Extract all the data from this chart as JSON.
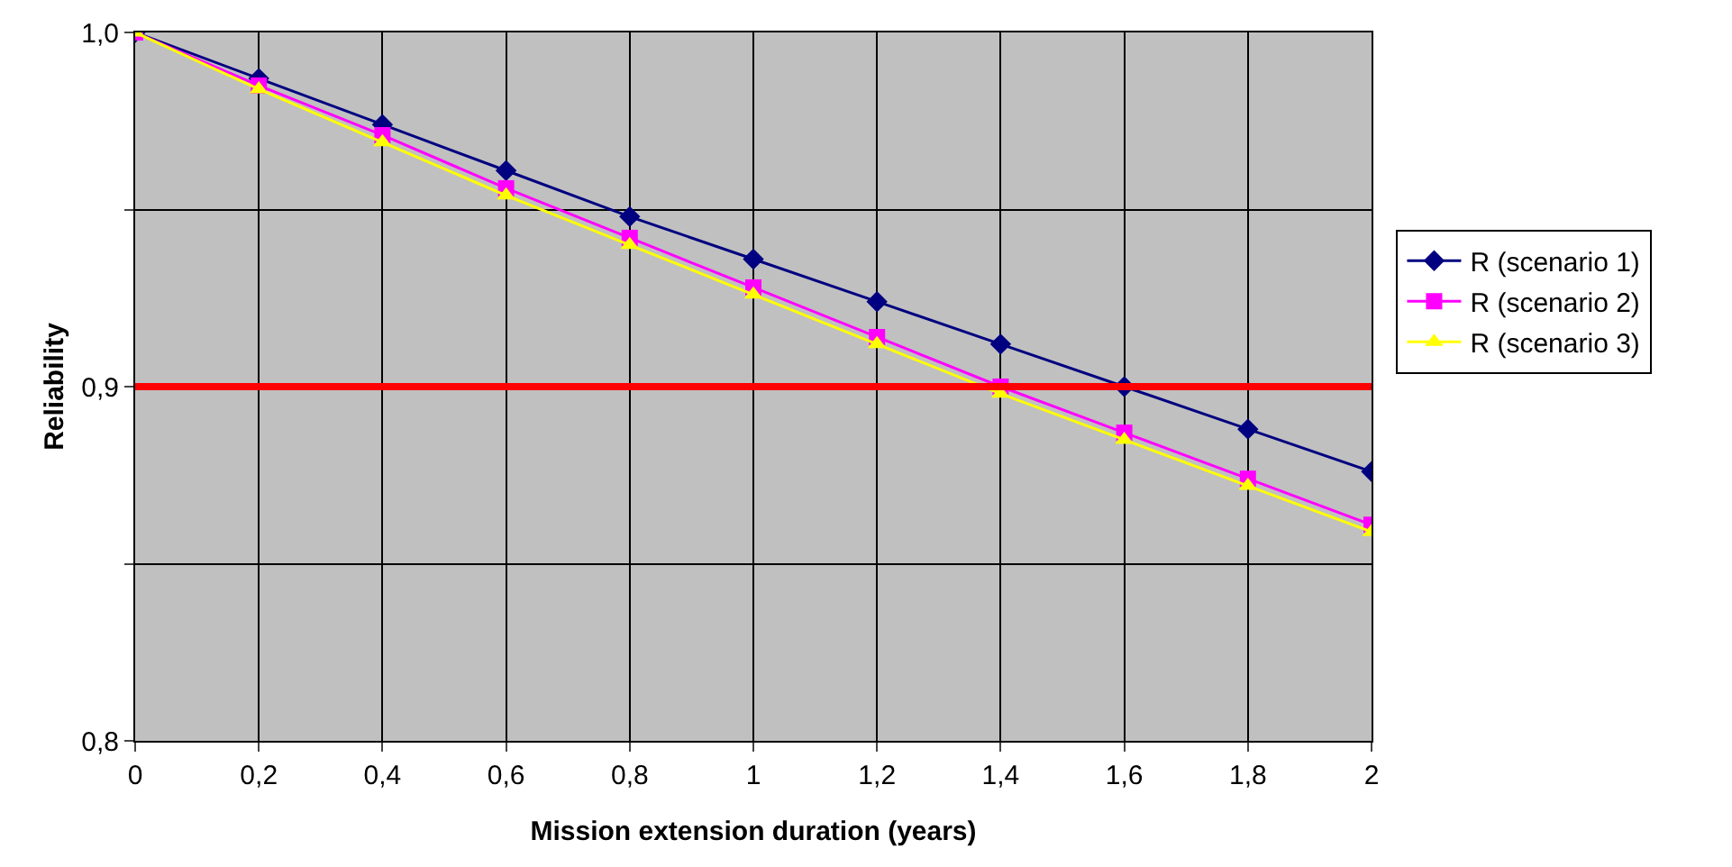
{
  "chart_data": {
    "type": "line",
    "xlabel": "Mission extension duration (years)",
    "ylabel": "Reliability",
    "x": [
      0,
      0.2,
      0.4,
      0.6,
      0.8,
      1,
      1.2,
      1.4,
      1.6,
      1.8,
      2
    ],
    "series": [
      {
        "name": "R (scenario 1)",
        "color": "#000080",
        "marker": "diamond",
        "values": [
          1,
          0.987,
          0.974,
          0.961,
          0.948,
          0.936,
          0.924,
          0.912,
          0.9,
          0.888,
          0.876
        ]
      },
      {
        "name": "R (scenario 2)",
        "color": "#ff00ff",
        "marker": "square",
        "values": [
          1,
          0.985,
          0.971,
          0.956,
          0.942,
          0.928,
          0.914,
          0.9,
          0.887,
          0.874,
          0.861
        ]
      },
      {
        "name": "R (scenario 3)",
        "color": "#ffff00",
        "marker": "triangle",
        "values": [
          1,
          0.984,
          0.969,
          0.954,
          0.94,
          0.926,
          0.912,
          0.898,
          0.885,
          0.872,
          0.859
        ]
      }
    ],
    "xlim": [
      0,
      2
    ],
    "xticks": [
      0,
      {
        "value": 0.2,
        "label": "0,2"
      },
      {
        "value": 0.4,
        "label": "0,4"
      },
      {
        "value": 0.6,
        "label": "0,6"
      },
      {
        "value": 0.8,
        "label": "0,8"
      },
      1,
      {
        "value": 1.2,
        "label": "1,2"
      },
      {
        "value": 1.4,
        "label": "1,4"
      },
      {
        "value": 1.6,
        "label": "1,6"
      },
      {
        "value": 1.8,
        "label": "1,8"
      },
      2
    ],
    "ylim": [
      0.8,
      1
    ],
    "yticks": [
      {
        "value": 0.8,
        "label": "0,8"
      },
      {
        "value": 0.85,
        "label": null
      },
      {
        "value": 0.9,
        "label": "0,9"
      },
      {
        "value": 0.95,
        "label": null
      },
      {
        "value": 1,
        "label": "1,0"
      }
    ],
    "ref_lines": [
      {
        "axis": "y",
        "value": 0.9,
        "color": "#ff0000"
      }
    ],
    "grid": true,
    "legend": "right",
    "line_style": "solid"
  }
}
